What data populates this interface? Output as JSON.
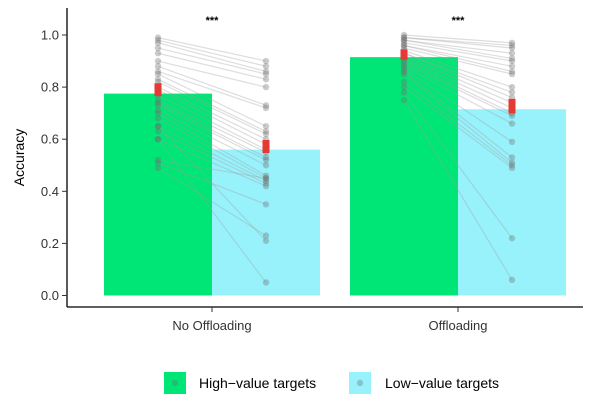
{
  "chart_data": {
    "type": "bar",
    "ylabel": "Accuracy",
    "xlabel": "",
    "ylim": [
      0,
      1.05
    ],
    "yticks": [
      0.0,
      0.2,
      0.4,
      0.6,
      0.8,
      1.0
    ],
    "ytick_labels": [
      "0.0",
      "0.2",
      "0.4",
      "0.6",
      "0.8",
      "1.0"
    ],
    "categories": [
      "No Offloading",
      "Offloading"
    ],
    "series": [
      {
        "name": "High−value targets",
        "color": "#00e676",
        "values": [
          0.775,
          0.915
        ],
        "mean": [
          0.79,
          0.925
        ],
        "se": [
          0.025,
          0.02
        ]
      },
      {
        "name": "Low−value targets",
        "color": "#98f2fc",
        "values": [
          0.56,
          0.715
        ],
        "mean": [
          0.572,
          0.727
        ],
        "se": [
          0.025,
          0.028
        ]
      }
    ],
    "significance": [
      "***",
      "***"
    ],
    "participants": [
      [
        [
          0.99,
          0.9
        ],
        [
          0.98,
          0.88
        ],
        [
          0.97,
          0.86
        ],
        [
          0.95,
          0.85
        ],
        [
          0.93,
          0.83
        ],
        [
          0.9,
          0.8
        ],
        [
          0.88,
          0.73
        ],
        [
          0.86,
          0.72
        ],
        [
          0.85,
          0.65
        ],
        [
          0.83,
          0.63
        ],
        [
          0.82,
          0.62
        ],
        [
          0.8,
          0.6
        ],
        [
          0.79,
          0.58
        ],
        [
          0.77,
          0.56
        ],
        [
          0.75,
          0.55
        ],
        [
          0.74,
          0.53
        ],
        [
          0.73,
          0.52
        ],
        [
          0.71,
          0.5
        ],
        [
          0.7,
          0.46
        ],
        [
          0.68,
          0.45
        ],
        [
          0.65,
          0.44
        ],
        [
          0.63,
          0.43
        ],
        [
          0.6,
          0.42
        ],
        [
          0.52,
          0.45
        ],
        [
          0.51,
          0.35
        ],
        [
          0.49,
          0.23
        ],
        [
          0.65,
          0.21
        ],
        [
          0.6,
          0.05
        ]
      ],
      [
        [
          1.0,
          0.97
        ],
        [
          0.99,
          0.96
        ],
        [
          0.99,
          0.95
        ],
        [
          0.98,
          0.93
        ],
        [
          0.98,
          0.91
        ],
        [
          0.97,
          0.9
        ],
        [
          0.96,
          0.88
        ],
        [
          0.96,
          0.86
        ],
        [
          0.95,
          0.85
        ],
        [
          0.94,
          0.8
        ],
        [
          0.93,
          0.78
        ],
        [
          0.93,
          0.76
        ],
        [
          0.92,
          0.74
        ],
        [
          0.91,
          0.72
        ],
        [
          0.9,
          0.7
        ],
        [
          0.89,
          0.69
        ],
        [
          0.88,
          0.66
        ],
        [
          0.87,
          0.59
        ],
        [
          0.86,
          0.53
        ],
        [
          0.85,
          0.51
        ],
        [
          0.82,
          0.5
        ],
        [
          0.8,
          0.49
        ],
        [
          0.78,
          0.22
        ],
        [
          0.75,
          0.06
        ]
      ]
    ],
    "legend_position": "bottom"
  }
}
